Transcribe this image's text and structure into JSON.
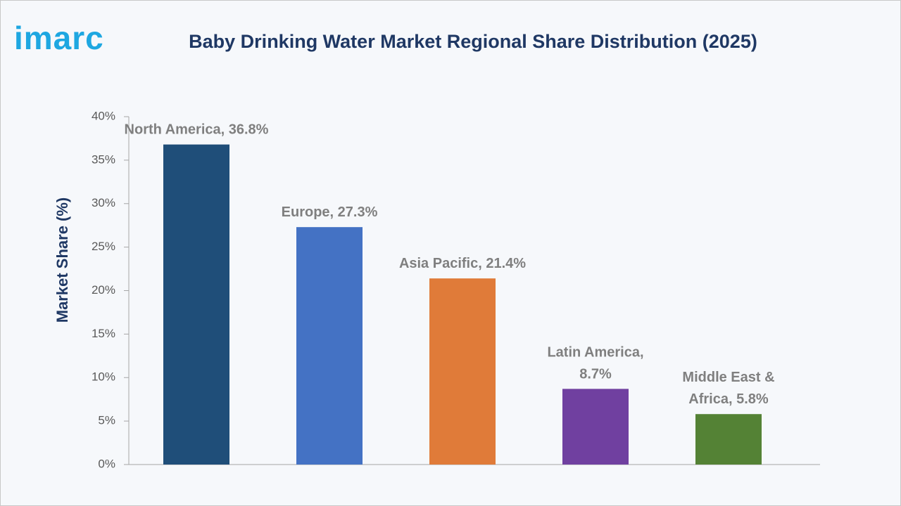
{
  "logo": "imarc",
  "chart_data": {
    "type": "bar",
    "title": "Baby Drinking Water Market Regional Share Distribution (2025)",
    "y_label": "Market Share (%)",
    "values": [
      36.8,
      27.3,
      21.4,
      8.7,
      5.8
    ],
    "value_labels": [
      "North America, 36.8%",
      "Europe, 27.3%",
      "Asia Pacific, 21.4%",
      "Latin America,\n8.7%",
      "Middle East &\nAfrica, 5.8%"
    ],
    "colors": [
      "#1f4e79",
      "#4472c4",
      "#e07b39",
      "#7040a0",
      "#548235"
    ],
    "ylim": [
      0,
      40
    ],
    "yticks": [
      {
        "value": 0,
        "label": "0%"
      },
      {
        "value": 5,
        "label": "5%"
      },
      {
        "value": 10,
        "label": "10%"
      },
      {
        "value": 15,
        "label": "15%"
      },
      {
        "value": 20,
        "label": "20%"
      },
      {
        "value": 25,
        "label": "25%"
      },
      {
        "value": 30,
        "label": "30%"
      },
      {
        "value": 35,
        "label": "35%"
      },
      {
        "value": 40,
        "label": "40%"
      }
    ],
    "grid": false
  }
}
